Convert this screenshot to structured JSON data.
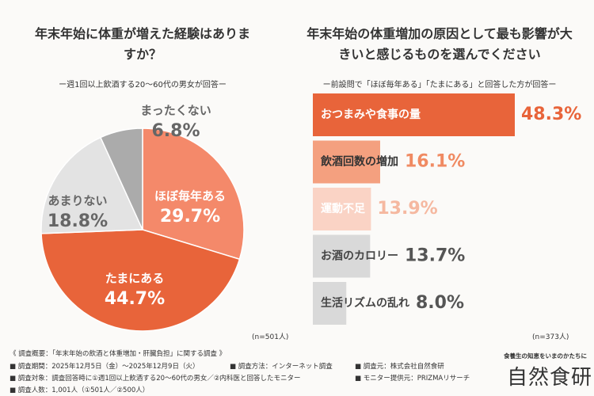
{
  "chart_data": [
    {
      "type": "pie",
      "title": "年末年始に体重が増えた経験はありますか？",
      "subtitle": "ー週1回以上飲酒する20〜60代の男女が回答ー",
      "note": "(n=501人)",
      "categories": [
        "ほぼ毎年ある",
        "たまにある",
        "あまりない",
        "まったくない"
      ],
      "values": [
        29.7,
        44.7,
        18.8,
        6.8
      ],
      "value_labels": [
        "29.7%",
        "44.7%",
        "18.8%",
        "6.8%"
      ],
      "colors": [
        "#f4896a",
        "#e8643a",
        "#e3e3e3",
        "#ababab"
      ]
    },
    {
      "type": "hbar",
      "title": "年末年始の体重増加の原因として最も影響が大きいと感じるものを選んでください",
      "subtitle": "ー前設問で「ほぼ毎年ある」「たまにある」と回答した方が回答ー",
      "note": "(n=373人)",
      "categories": [
        "おつまみや食事の量",
        "飲酒回数の増加",
        "運動不足",
        "お酒のカロリー",
        "生活リズムの乱れ"
      ],
      "values": [
        48.3,
        16.1,
        13.9,
        13.7,
        8.0
      ],
      "value_labels": [
        "48.3%",
        "16.1%",
        "13.9%",
        "13.7%",
        "8.0%"
      ],
      "colors": [
        "#e8643a",
        "#f4a07f",
        "#fad3c5",
        "#d9d9d9",
        "#d9d9d9"
      ]
    }
  ],
  "footer": {
    "heading": "《 調査概要：「年末年始の飲酒と体重増加・肝臓負担」に関する調査 》",
    "items": [
      "■ 調査期間：2025年12月5日（金）〜2025年12月9日（火）",
      "■ 調査方法：インターネット調査",
      "■ 調査元：株式会社自然食研",
      "■ 調査対象：調査回答時に①週1回以上飲酒する20〜60代の男女／②内科医と回答したモニター",
      "■ モニター提供元：PRIZMAリサーチ",
      "■ 調査人数：1,001人（①501人／②500人）"
    ],
    "logo": {
      "tagline": "食養生の知恵をいまのかたちに",
      "name": "自然食研"
    }
  }
}
